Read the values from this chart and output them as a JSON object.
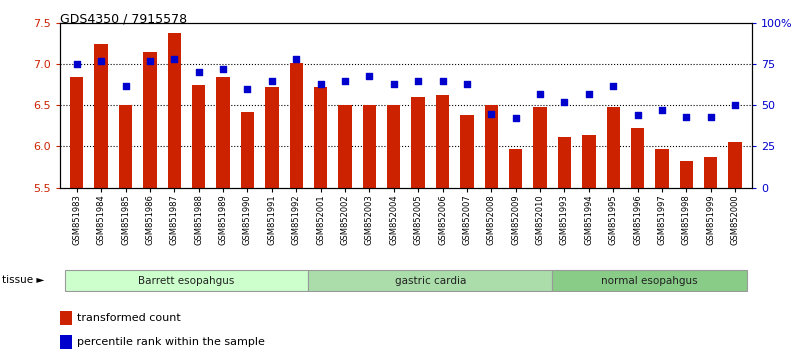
{
  "title": "GDS4350 / 7915578",
  "samples": [
    "GSM851983",
    "GSM851984",
    "GSM851985",
    "GSM851986",
    "GSM851987",
    "GSM851988",
    "GSM851989",
    "GSM851990",
    "GSM851991",
    "GSM851992",
    "GSM852001",
    "GSM852002",
    "GSM852003",
    "GSM852004",
    "GSM852005",
    "GSM852006",
    "GSM852007",
    "GSM852008",
    "GSM852009",
    "GSM852010",
    "GSM851993",
    "GSM851994",
    "GSM851995",
    "GSM851996",
    "GSM851997",
    "GSM851998",
    "GSM851999",
    "GSM852000"
  ],
  "bar_values": [
    6.85,
    7.25,
    6.5,
    7.15,
    7.38,
    6.75,
    6.85,
    6.42,
    6.72,
    7.02,
    6.72,
    6.5,
    6.5,
    6.5,
    6.6,
    6.62,
    6.38,
    6.5,
    5.97,
    6.48,
    6.12,
    6.14,
    6.48,
    6.22,
    5.97,
    5.82,
    5.87,
    6.05
  ],
  "percentile_values": [
    75,
    77,
    62,
    77,
    78,
    70,
    72,
    60,
    65,
    78,
    63,
    65,
    68,
    63,
    65,
    65,
    63,
    45,
    42,
    57,
    52,
    57,
    62,
    44,
    47,
    43,
    43,
    50
  ],
  "bar_color": "#cc2200",
  "dot_color": "#0000cc",
  "ylim_left": [
    5.5,
    7.5
  ],
  "ylim_right": [
    0,
    100
  ],
  "yticks_left": [
    5.5,
    6.0,
    6.5,
    7.0,
    7.5
  ],
  "yticks_right": [
    0,
    25,
    50,
    75,
    100
  ],
  "ytick_labels_right": [
    "0",
    "25",
    "50",
    "75",
    "100%"
  ],
  "groups": [
    {
      "label": "Barrett esopahgus",
      "start": 0,
      "end": 10
    },
    {
      "label": "gastric cardia",
      "start": 10,
      "end": 20
    },
    {
      "label": "normal esopahgus",
      "start": 20,
      "end": 28
    }
  ],
  "group_colors": [
    "#ccffcc",
    "#aaddaa",
    "#88cc88"
  ],
  "legend_items": [
    {
      "label": "transformed count",
      "color": "#cc2200"
    },
    {
      "label": "percentile rank within the sample",
      "color": "#0000cc"
    }
  ],
  "tissue_label": "tissue ►",
  "background_color": "#ffffff",
  "bar_width": 0.55,
  "base_value": 5.5
}
